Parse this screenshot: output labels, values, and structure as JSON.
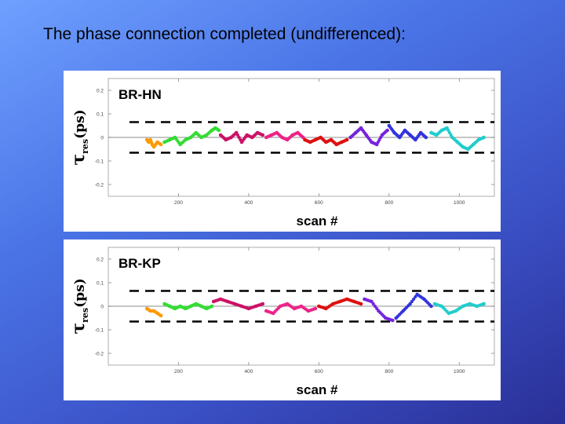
{
  "slide": {
    "title": "The phase connection completed (undifferenced):"
  },
  "chart_data": [
    {
      "type": "scatter",
      "title": "BR-HN",
      "xlabel": "scan #",
      "ylabel_symbol": "τ",
      "ylabel_sub": "res",
      "ylabel_unit": "(ps)",
      "xlim": [
        0,
        1100
      ],
      "ylim": [
        -0.25,
        0.25
      ],
      "xticks": [
        200,
        400,
        600,
        800,
        1000
      ],
      "yticks": [
        0.2,
        0.1,
        0,
        -0.1,
        -0.2
      ],
      "ytick_labels": [
        "0.2",
        "0.1",
        "0",
        "-0.1",
        "-0.2"
      ],
      "reference_lines": {
        "dashed": [
          0.065,
          -0.065
        ],
        "solid": [
          0
        ]
      },
      "grid": false,
      "colors": [
        "#ff9a00",
        "#33dd33",
        "#cc1166",
        "#ee2288",
        "#dd1111",
        "#7722dd",
        "#3333dd",
        "#22cccc"
      ],
      "series": [
        {
          "color": "#ff9a00",
          "x": [
            110,
            115,
            120,
            125,
            130,
            140,
            150
          ],
          "y": [
            -0.01,
            -0.02,
            -0.01,
            -0.03,
            -0.04,
            -0.02,
            -0.03
          ]
        },
        {
          "color": "#33dd33",
          "x": [
            160,
            175,
            190,
            205,
            220,
            235,
            250,
            265,
            280,
            295,
            305,
            315
          ],
          "y": [
            -0.02,
            -0.01,
            0.0,
            -0.03,
            -0.01,
            0.0,
            0.02,
            0.0,
            0.01,
            0.03,
            0.04,
            0.03
          ]
        },
        {
          "color": "#cc1166",
          "x": [
            320,
            335,
            350,
            365,
            380,
            395,
            410,
            425,
            440
          ],
          "y": [
            0.01,
            -0.01,
            0.0,
            0.02,
            -0.02,
            0.01,
            0.0,
            0.02,
            0.01
          ]
        },
        {
          "color": "#ee2288",
          "x": [
            450,
            465,
            480,
            495,
            510,
            525,
            540,
            555
          ],
          "y": [
            0.0,
            0.01,
            0.02,
            0.0,
            -0.01,
            0.01,
            0.02,
            0.0
          ]
        },
        {
          "color": "#dd1111",
          "x": [
            560,
            575,
            590,
            605,
            620,
            635,
            650,
            665,
            680
          ],
          "y": [
            -0.01,
            -0.02,
            -0.01,
            0.0,
            -0.02,
            -0.01,
            -0.03,
            -0.02,
            -0.01
          ]
        },
        {
          "color": "#7722dd",
          "x": [
            690,
            705,
            720,
            735,
            750,
            765,
            780,
            795
          ],
          "y": [
            0.0,
            0.02,
            0.04,
            0.01,
            -0.02,
            -0.03,
            0.01,
            0.03
          ]
        },
        {
          "color": "#3333dd",
          "x": [
            800,
            815,
            830,
            845,
            860,
            875,
            890,
            905
          ],
          "y": [
            0.05,
            0.02,
            0.0,
            0.03,
            0.01,
            -0.01,
            0.02,
            0.0
          ]
        },
        {
          "color": "#22cccc",
          "x": [
            920,
            935,
            950,
            965,
            980,
            995,
            1010,
            1025,
            1040,
            1055,
            1070
          ],
          "y": [
            0.02,
            0.01,
            0.03,
            0.04,
            0.0,
            -0.02,
            -0.04,
            -0.05,
            -0.03,
            -0.01,
            0.0
          ]
        }
      ]
    },
    {
      "type": "scatter",
      "title": "BR-KP",
      "xlabel": "scan #",
      "ylabel_symbol": "τ",
      "ylabel_sub": "res",
      "ylabel_unit": "(ps)",
      "xlim": [
        0,
        1100
      ],
      "ylim": [
        -0.25,
        0.25
      ],
      "xticks": [
        200,
        400,
        600,
        800,
        1000
      ],
      "yticks": [
        0.2,
        0.1,
        0,
        -0.1,
        -0.2
      ],
      "ytick_labels": [
        "0.2",
        "0.1",
        "0",
        "-0.1",
        "-0.2"
      ],
      "reference_lines": {
        "dashed": [
          0.065,
          -0.065
        ],
        "solid": [
          0
        ]
      },
      "grid": false,
      "colors": [
        "#ff9a00",
        "#33dd33",
        "#cc1166",
        "#ee2288",
        "#dd1111",
        "#7722dd",
        "#3333dd",
        "#22cccc"
      ],
      "series": [
        {
          "color": "#ff9a00",
          "x": [
            110,
            120,
            130,
            140,
            150
          ],
          "y": [
            -0.01,
            -0.02,
            -0.02,
            -0.03,
            -0.04
          ]
        },
        {
          "color": "#33dd33",
          "x": [
            160,
            175,
            190,
            205,
            220,
            235,
            250,
            265,
            280,
            295
          ],
          "y": [
            0.01,
            0.0,
            -0.01,
            0.0,
            -0.01,
            0.0,
            0.01,
            0.0,
            -0.01,
            0.0
          ]
        },
        {
          "color": "#cc1166",
          "x": [
            300,
            320,
            340,
            360,
            380,
            400,
            420,
            440
          ],
          "y": [
            0.02,
            0.03,
            0.02,
            0.01,
            0.0,
            -0.01,
            0.0,
            0.01
          ]
        },
        {
          "color": "#ee2288",
          "x": [
            450,
            470,
            490,
            510,
            530,
            550,
            570,
            590
          ],
          "y": [
            -0.02,
            -0.03,
            0.0,
            0.01,
            -0.01,
            0.0,
            -0.02,
            -0.01
          ]
        },
        {
          "color": "#dd1111",
          "x": [
            600,
            620,
            640,
            660,
            680,
            700,
            720
          ],
          "y": [
            0.0,
            -0.01,
            0.01,
            0.02,
            0.03,
            0.02,
            0.01
          ]
        },
        {
          "color": "#7722dd",
          "x": [
            730,
            750,
            770,
            790,
            810
          ],
          "y": [
            0.03,
            0.02,
            -0.02,
            -0.05,
            -0.06
          ]
        },
        {
          "color": "#3333dd",
          "x": [
            820,
            840,
            860,
            880,
            900,
            920
          ],
          "y": [
            -0.05,
            -0.02,
            0.01,
            0.05,
            0.03,
            0.0
          ]
        },
        {
          "color": "#22cccc",
          "x": [
            930,
            950,
            970,
            990,
            1010,
            1030,
            1050,
            1070
          ],
          "y": [
            0.01,
            0.0,
            -0.03,
            -0.02,
            0.0,
            0.01,
            0.0,
            0.01
          ]
        }
      ]
    }
  ]
}
